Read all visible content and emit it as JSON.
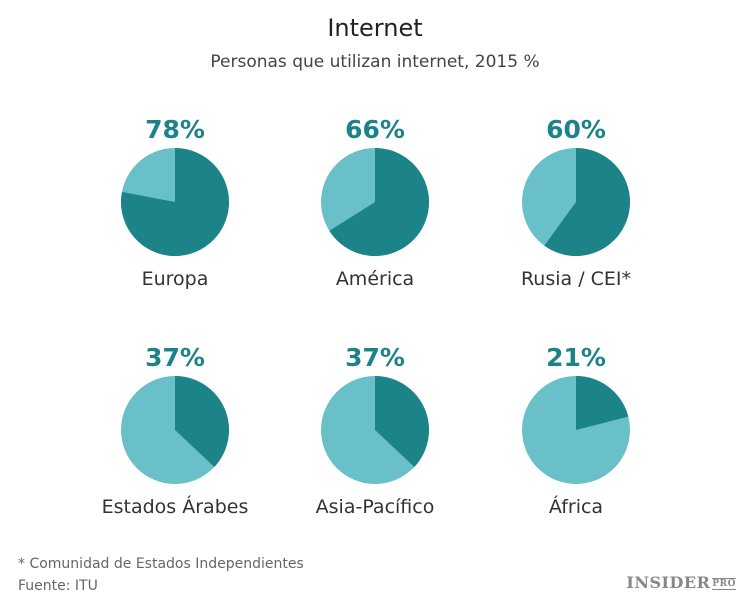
{
  "chart_data": {
    "type": "pie",
    "title": "Internet",
    "subtitle": "Personas que utilizan internet, 2015 %",
    "colors": {
      "value": "#1c8489",
      "remainder": "#69c0c8",
      "label": "#1c8489"
    },
    "regions": [
      {
        "name": "Europa",
        "value": 78,
        "label": "78%"
      },
      {
        "name": "América",
        "value": 66,
        "label": "66%"
      },
      {
        "name": "Rusia / CEI*",
        "value": 60,
        "label": "60%"
      },
      {
        "name": "Estados Árabes",
        "value": 37,
        "label": "37%"
      },
      {
        "name": "Asia-Pacífico",
        "value": 37,
        "label": "37%"
      },
      {
        "name": "África",
        "value": 21,
        "label": "21%"
      }
    ]
  },
  "footnote": "* Comunidad de Estados Independientes",
  "source": "Fuente: ITU",
  "logo": {
    "text": "INSIDER",
    "suffix": "PRO"
  }
}
